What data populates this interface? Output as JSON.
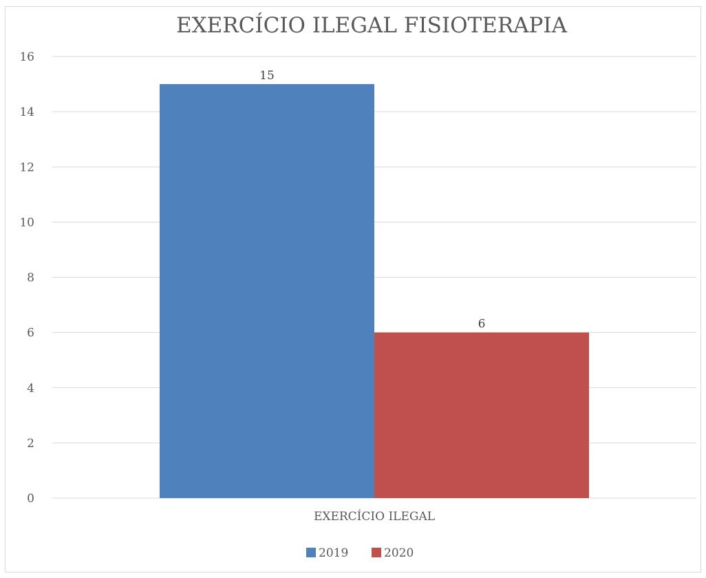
{
  "chart_data": {
    "type": "bar",
    "title": "EXERCÍCIO ILEGAL FISIOTERAPIA",
    "categories": [
      "EXERCÍCIO ILEGAL"
    ],
    "series": [
      {
        "name": "2019",
        "values": [
          15
        ],
        "color": "#4F81BD"
      },
      {
        "name": "2020",
        "values": [
          6
        ],
        "color": "#C0504D"
      }
    ],
    "ylim": [
      0,
      16
    ],
    "yticks": [
      0,
      2,
      4,
      6,
      8,
      10,
      12,
      14,
      16
    ],
    "grid": true,
    "data_labels": true,
    "legend_position": "bottom"
  }
}
